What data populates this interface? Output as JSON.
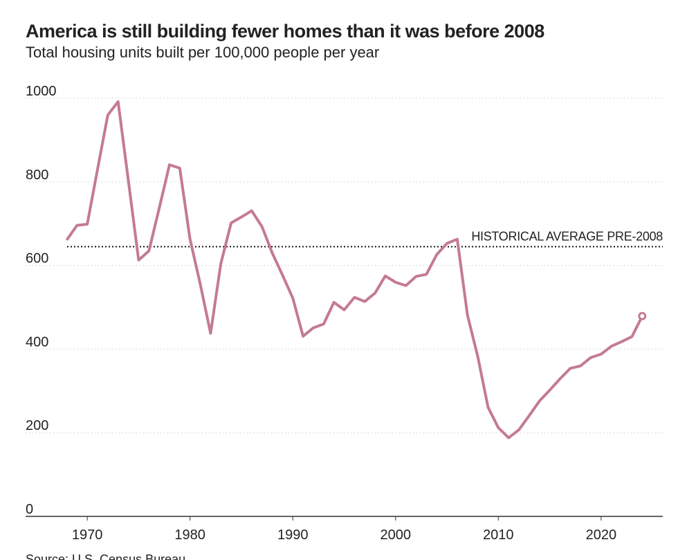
{
  "chart_data": {
    "type": "line",
    "title": "America is still building fewer homes than it was before 2008",
    "subtitle": "Total housing units built per 100,000 people per year",
    "source": "Source: U.S. Census Bureau",
    "x": [
      1968,
      1969,
      1970,
      1971,
      1972,
      1973,
      1974,
      1975,
      1976,
      1977,
      1978,
      1979,
      1980,
      1981,
      1982,
      1983,
      1984,
      1985,
      1986,
      1987,
      1988,
      1989,
      1990,
      1991,
      1992,
      1993,
      1994,
      1995,
      1996,
      1997,
      1998,
      1999,
      2000,
      2001,
      2002,
      2003,
      2004,
      2005,
      2006,
      2007,
      2008,
      2009,
      2010,
      2011,
      2012,
      2013,
      2014,
      2015,
      2016,
      2017,
      2018,
      2019,
      2020,
      2021,
      2022,
      2023,
      2024
    ],
    "values": [
      661,
      696,
      699,
      830,
      960,
      992,
      803,
      613,
      635,
      737,
      841,
      833,
      663,
      555,
      438,
      605,
      702,
      716,
      731,
      693,
      630,
      577,
      522,
      431,
      451,
      460,
      512,
      494,
      524,
      514,
      534,
      575,
      560,
      552,
      574,
      579,
      626,
      653,
      663,
      481,
      382,
      261,
      212,
      188,
      207,
      241,
      276,
      302,
      329,
      354,
      360,
      380,
      388,
      407,
      418,
      430,
      479
    ],
    "color": "#c47a94",
    "xlim": [
      1964,
      2026
    ],
    "xticks": [
      1970,
      1980,
      1990,
      2000,
      2010,
      2020
    ],
    "ylim": [
      0,
      1000
    ],
    "yticks": [
      0,
      200,
      400,
      600,
      800,
      1000
    ],
    "grid": true,
    "reference_line": {
      "value": 645,
      "label": "HISTORICAL AVERAGE PRE-2008"
    }
  }
}
